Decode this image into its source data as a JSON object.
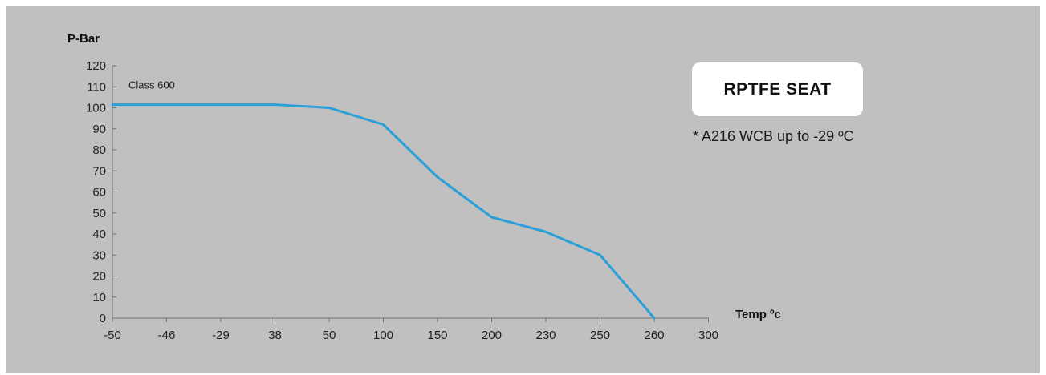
{
  "chart_data": {
    "type": "line",
    "ylabel": "P-Bar",
    "xlabel": "Temp ºc",
    "x_categories": [
      "-50",
      "-46",
      "-29",
      "38",
      "50",
      "100",
      "150",
      "200",
      "230",
      "250",
      "260",
      "300"
    ],
    "y_ticks": [
      0,
      10,
      20,
      30,
      40,
      50,
      60,
      70,
      80,
      90,
      100,
      110,
      120
    ],
    "ylim": [
      0,
      120
    ],
    "grid": false,
    "line_color": "#2a9fd8",
    "series": [
      {
        "name": "Class 600",
        "x": [
          "-50",
          "-46",
          "-29",
          "38",
          "50",
          "100",
          "150",
          "200",
          "230",
          "250",
          "260"
        ],
        "values": [
          101.5,
          101.5,
          101.5,
          101.5,
          100,
          92,
          67,
          48,
          41,
          30,
          0
        ]
      }
    ]
  },
  "legend_box": {
    "title": "RPTFE SEAT",
    "note": "* A216 WCB up to -29 ºC"
  }
}
